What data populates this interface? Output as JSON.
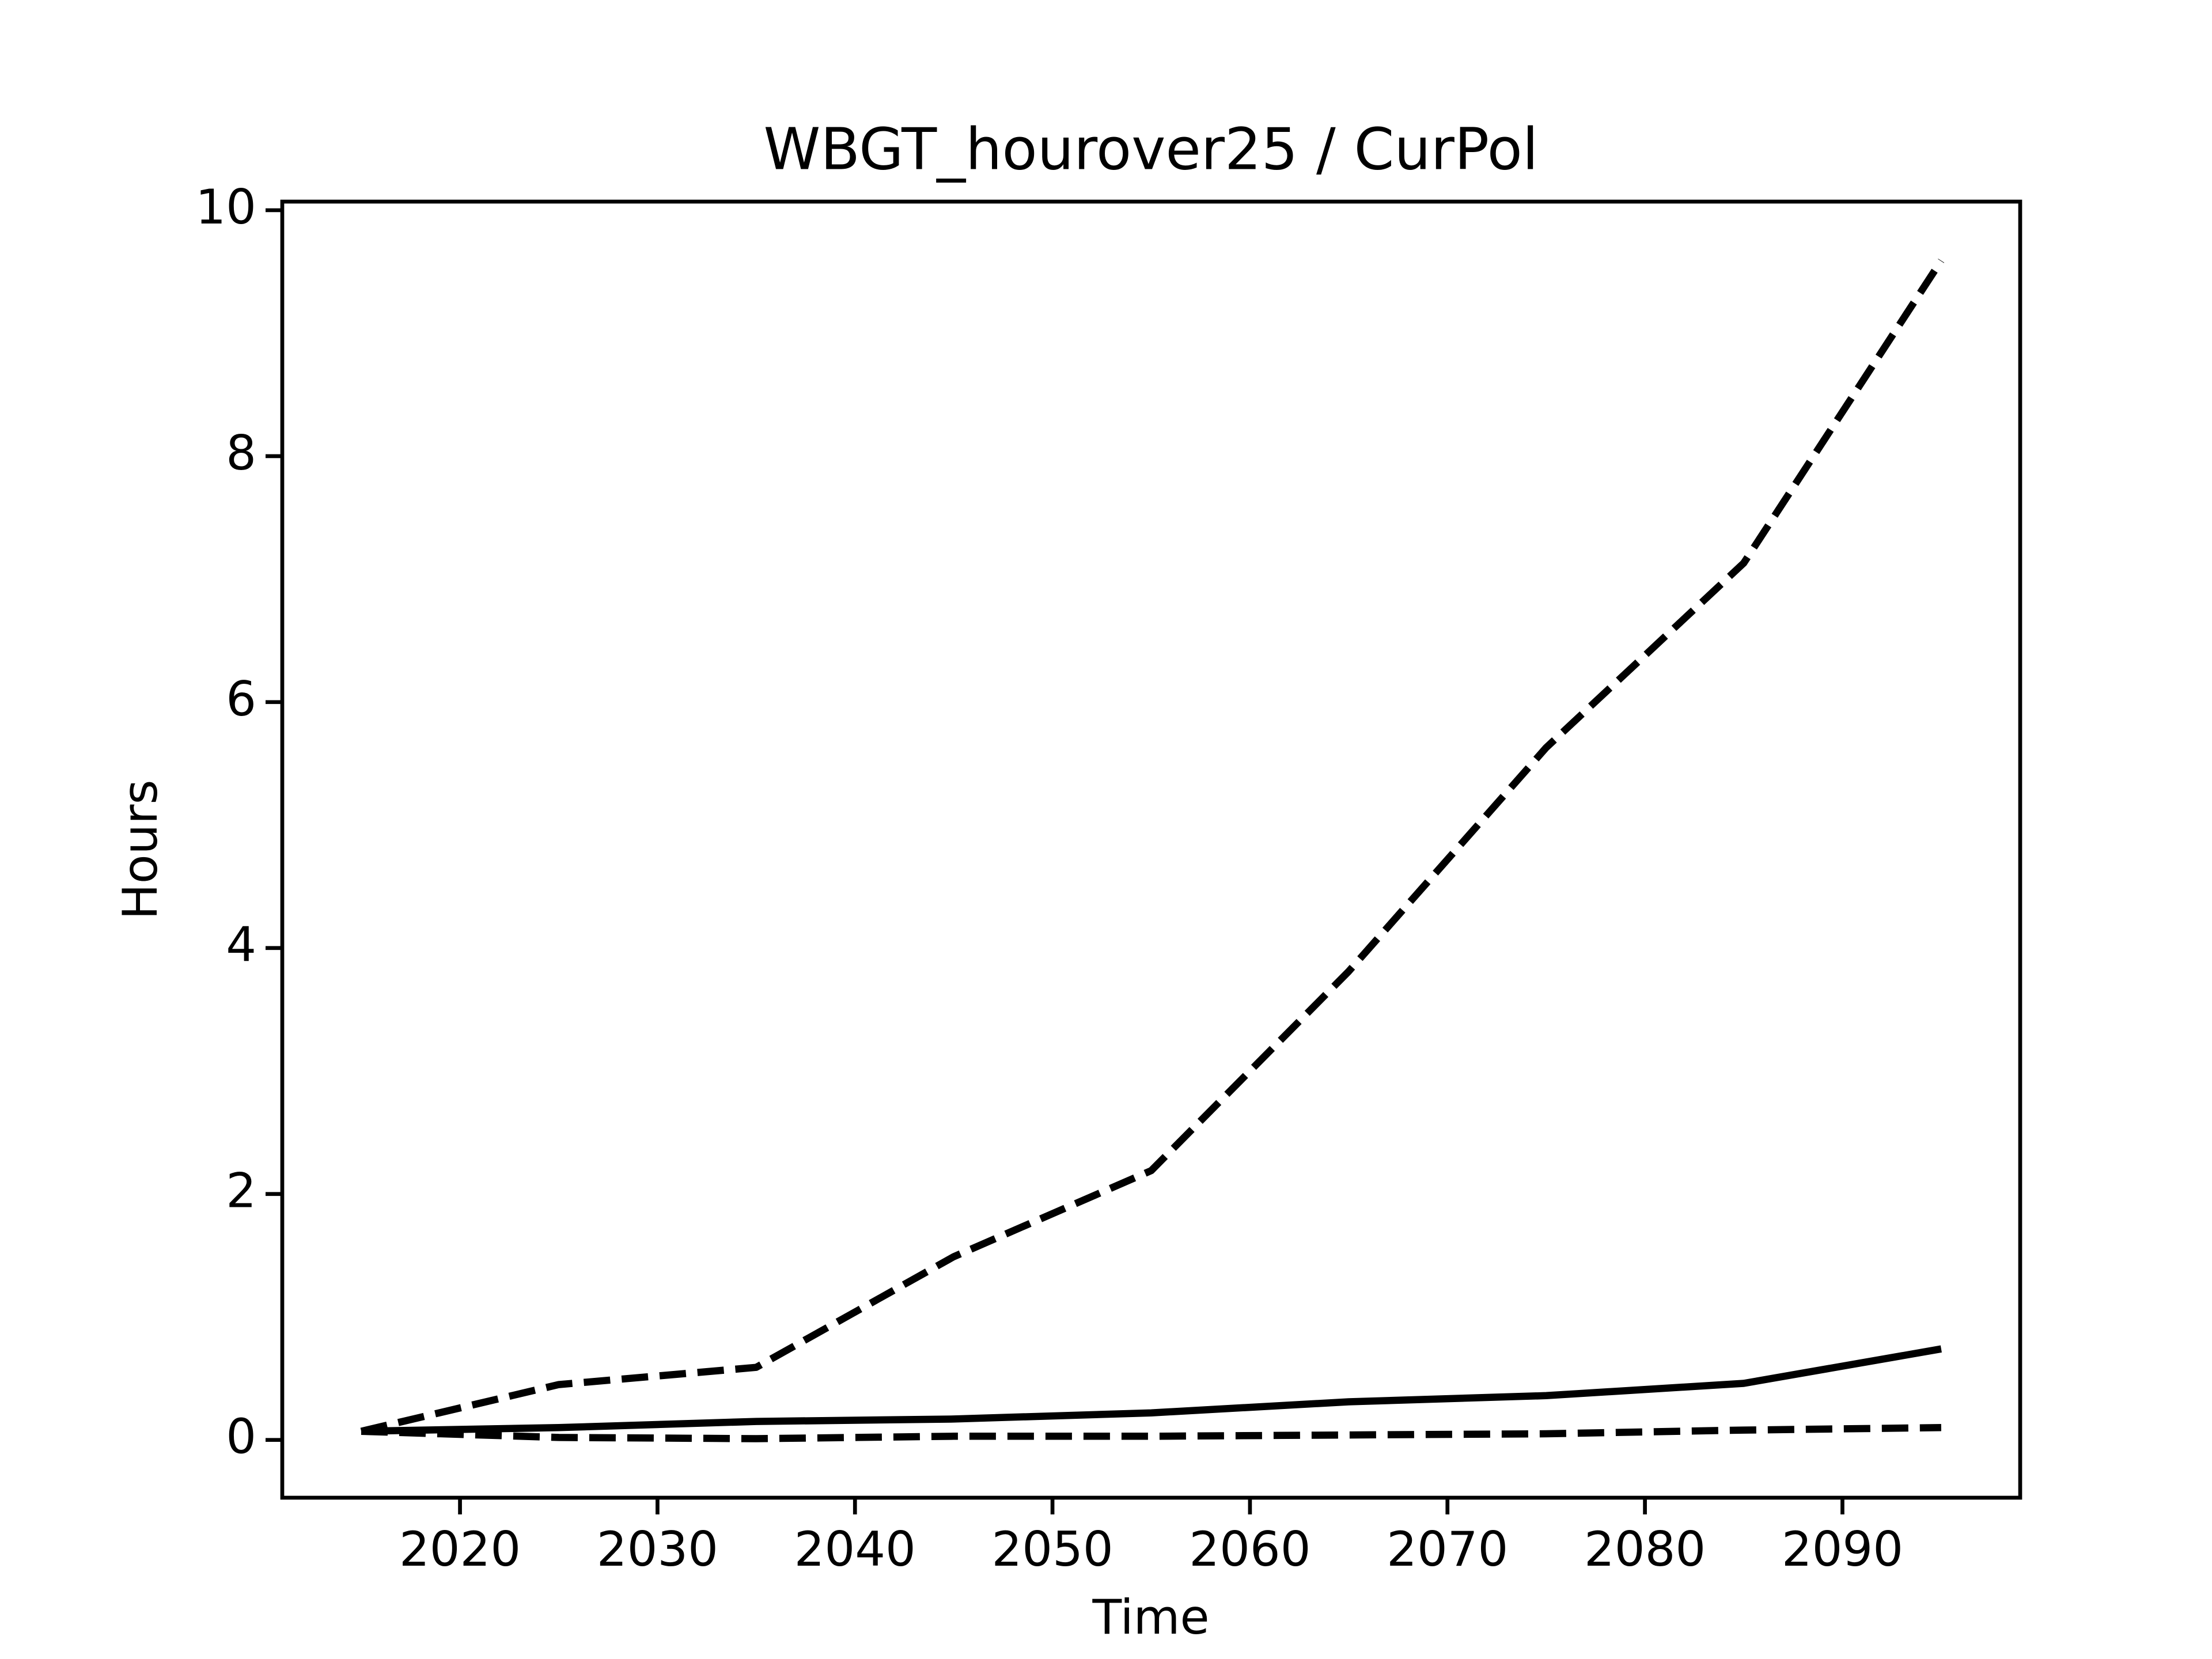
{
  "chart_data": {
    "type": "line",
    "title": "WBGT_hourover25 / CurPol",
    "xlabel": "Time",
    "ylabel": "Hours",
    "x": [
      2015,
      2025,
      2035,
      2045,
      2055,
      2065,
      2075,
      2085,
      2095
    ],
    "series": [
      {
        "color": "#000000",
        "linestyle": "dashed",
        "values": [
          0.07,
          0.45,
          0.59,
          1.49,
          2.19,
          3.81,
          5.63,
          7.13,
          9.59
        ]
      },
      {
        "color": "#000000",
        "linestyle": "solid",
        "values": [
          0.07,
          0.1,
          0.15,
          0.17,
          0.22,
          0.31,
          0.36,
          0.46,
          0.74
        ]
      },
      {
        "color": "#000000",
        "linestyle": "dashed",
        "values": [
          0.07,
          0.02,
          0.01,
          0.03,
          0.03,
          0.04,
          0.05,
          0.08,
          0.1
        ]
      }
    ],
    "xlim": [
      2011,
      2099
    ],
    "xticks": [
      2020,
      2030,
      2040,
      2050,
      2060,
      2070,
      2080,
      2090
    ],
    "ylim": [
      -0.47,
      10.07
    ],
    "yticks": [
      0,
      2,
      4,
      6,
      8,
      10
    ],
    "grid": false
  }
}
